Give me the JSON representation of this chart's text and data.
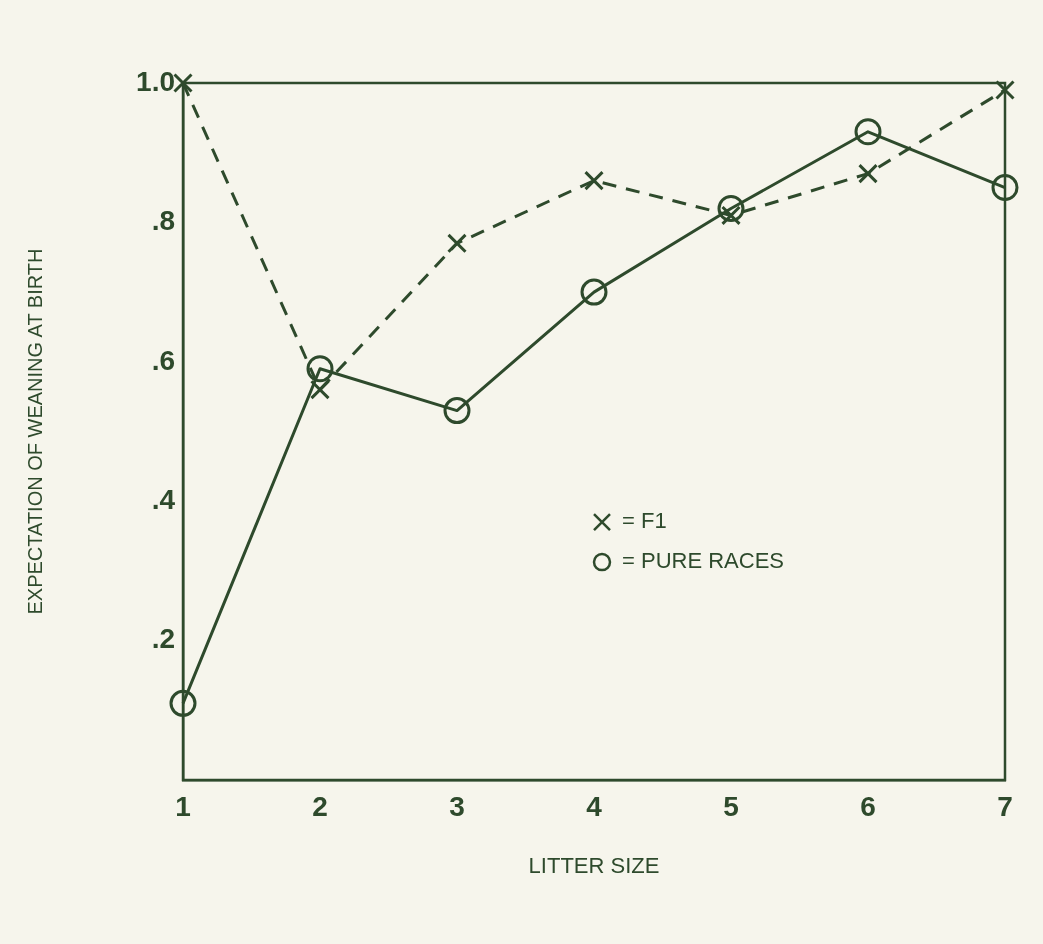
{
  "chart_data": {
    "type": "line",
    "xlabel": "LITTER SIZE",
    "ylabel": "EXPECTATION OF WEANING AT BIRTH",
    "x": [
      1,
      2,
      3,
      4,
      5,
      6,
      7
    ],
    "series": [
      {
        "name": "= F1",
        "color": "#2e4a2c",
        "values": [
          1.0,
          0.56,
          0.77,
          0.86,
          0.81,
          0.87,
          0.99
        ],
        "marker": "cross",
        "line_style": "dashed"
      },
      {
        "name": "= PURE RACES",
        "color": "#2e4a2c",
        "values": [
          0.11,
          0.59,
          0.53,
          0.7,
          0.82,
          0.93,
          0.85
        ],
        "marker": "circle",
        "line_style": "solid"
      }
    ],
    "xlim": [
      1,
      7
    ],
    "xticks": [
      1,
      2,
      3,
      4,
      5,
      6,
      7
    ],
    "ylim": [
      0,
      1
    ],
    "yticks": [
      {
        "value": 0.2,
        "label": ".2"
      },
      {
        "value": 0.4,
        "label": ".4"
      },
      {
        "value": 0.6,
        "label": ".6"
      },
      {
        "value": 0.8,
        "label": ".8"
      },
      {
        "value": 1,
        "label": "1.0"
      }
    ],
    "grid": false,
    "legend": "right"
  }
}
